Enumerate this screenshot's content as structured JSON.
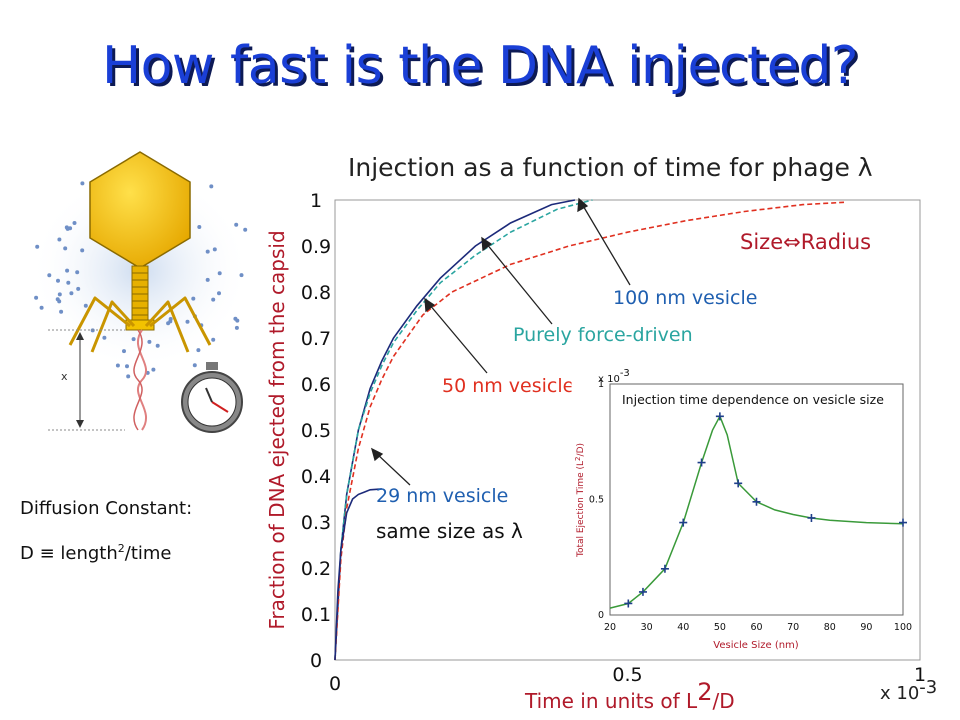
{
  "slide": {
    "title": "How fast is the DNA injected?",
    "diffusion": {
      "label": "Diffusion Constant:",
      "formula_prefix": "D ≡ length",
      "formula_sup": "2",
      "formula_suffix": "/time"
    },
    "diagram": {
      "x_label": "x"
    },
    "icons": [
      "bacteriophage-icon",
      "stopwatch-icon"
    ]
  },
  "colors": {
    "title": "#1a3fd6",
    "title_shadow": "#0d1a55",
    "phage_head": "#f2c200",
    "phage_tail": "#d9a400",
    "solid_curves": "#1c2a7a",
    "force_driven": "#2aa5a0",
    "nm50": "#e03020",
    "axis_label_red": "#b01a2a",
    "inset_curve": "#3a9a3a",
    "inset_markers": "#1f3f8a"
  },
  "chart_data": [
    {
      "type": "line",
      "title": "Injection as a function of time for phage λ",
      "xlabel_prefix": "Time in units of L",
      "xlabel_sup": "2",
      "xlabel_suffix": "/D",
      "ylabel": "Fraction of DNA ejected from the capsid",
      "x_multiplier_prefix": "x 10",
      "x_multiplier_exp": "-3",
      "xlim": [
        0,
        1
      ],
      "ylim": [
        0,
        1
      ],
      "x_ticks": [
        "0",
        "0.5",
        "1"
      ],
      "y_ticks": [
        "0",
        "0.1",
        "0.2",
        "0.3",
        "0.4",
        "0.5",
        "0.6",
        "0.7",
        "0.8",
        "0.9",
        "1"
      ],
      "annotations": {
        "size_radius": "Size⇔Radius",
        "vesicle_100": "100 nm vesicle",
        "force_driven": "Purely force-driven",
        "vesicle_50": "50 nm vesicle",
        "vesicle_29": "29 nm vesicle",
        "same_size": "same size as  λ"
      },
      "series": [
        {
          "name": "100 nm vesicle",
          "style": "solid",
          "color": "#1c2a7a",
          "x": [
            0,
            0.01,
            0.02,
            0.04,
            0.06,
            0.08,
            0.1,
            0.14,
            0.18,
            0.24,
            0.3,
            0.37,
            0.41
          ],
          "y": [
            0,
            0.24,
            0.36,
            0.5,
            0.59,
            0.65,
            0.7,
            0.77,
            0.83,
            0.9,
            0.95,
            0.99,
            1.0
          ]
        },
        {
          "name": "Purely force-driven",
          "style": "dashed",
          "color": "#2aa5a0",
          "x": [
            0,
            0.01,
            0.02,
            0.04,
            0.06,
            0.08,
            0.1,
            0.14,
            0.18,
            0.24,
            0.3,
            0.38,
            0.44
          ],
          "y": [
            0,
            0.24,
            0.36,
            0.5,
            0.58,
            0.64,
            0.69,
            0.76,
            0.82,
            0.88,
            0.93,
            0.98,
            1.0
          ]
        },
        {
          "name": "50 nm vesicle",
          "style": "dashed",
          "color": "#e03020",
          "x": [
            0,
            0.01,
            0.02,
            0.04,
            0.06,
            0.08,
            0.1,
            0.15,
            0.2,
            0.3,
            0.4,
            0.5,
            0.6,
            0.7,
            0.8,
            0.87
          ],
          "y": [
            0,
            0.22,
            0.33,
            0.46,
            0.55,
            0.61,
            0.66,
            0.75,
            0.8,
            0.86,
            0.9,
            0.93,
            0.955,
            0.975,
            0.99,
            0.995
          ]
        },
        {
          "name": "29 nm vesicle",
          "style": "solid",
          "color": "#1c2a7a",
          "x": [
            0,
            0.005,
            0.01,
            0.02,
            0.03,
            0.04,
            0.05,
            0.06,
            0.08
          ],
          "y": [
            0,
            0.15,
            0.24,
            0.32,
            0.35,
            0.36,
            0.365,
            0.37,
            0.372
          ]
        }
      ]
    },
    {
      "type": "line",
      "title": "Injection time dependence on vesicle size",
      "xlabel": "Vesicle Size (nm)",
      "ylabel_prefix": "Total Ejection Time (L",
      "ylabel_sup": "2",
      "ylabel_suffix": "/D)",
      "y_multiplier_prefix": "x 10",
      "y_multiplier_exp": "-3",
      "xlim": [
        20,
        100
      ],
      "ylim": [
        0,
        1
      ],
      "x_ticks": [
        "20",
        "30",
        "40",
        "50",
        "60",
        "70",
        "80",
        "90",
        "100"
      ],
      "y_ticks": [
        "0",
        "0.5",
        "1"
      ],
      "points": {
        "x": [
          25,
          29,
          35,
          40,
          45,
          50,
          55,
          60,
          75,
          100
        ],
        "y": [
          0.05,
          0.1,
          0.2,
          0.4,
          0.66,
          0.86,
          0.57,
          0.49,
          0.42,
          0.4
        ]
      },
      "curve": {
        "x": [
          20,
          25,
          29,
          35,
          40,
          45,
          48,
          50,
          52,
          55,
          60,
          65,
          70,
          75,
          80,
          90,
          100
        ],
        "y": [
          0.03,
          0.05,
          0.1,
          0.2,
          0.4,
          0.66,
          0.8,
          0.86,
          0.78,
          0.57,
          0.49,
          0.455,
          0.435,
          0.42,
          0.41,
          0.4,
          0.395
        ]
      }
    }
  ]
}
